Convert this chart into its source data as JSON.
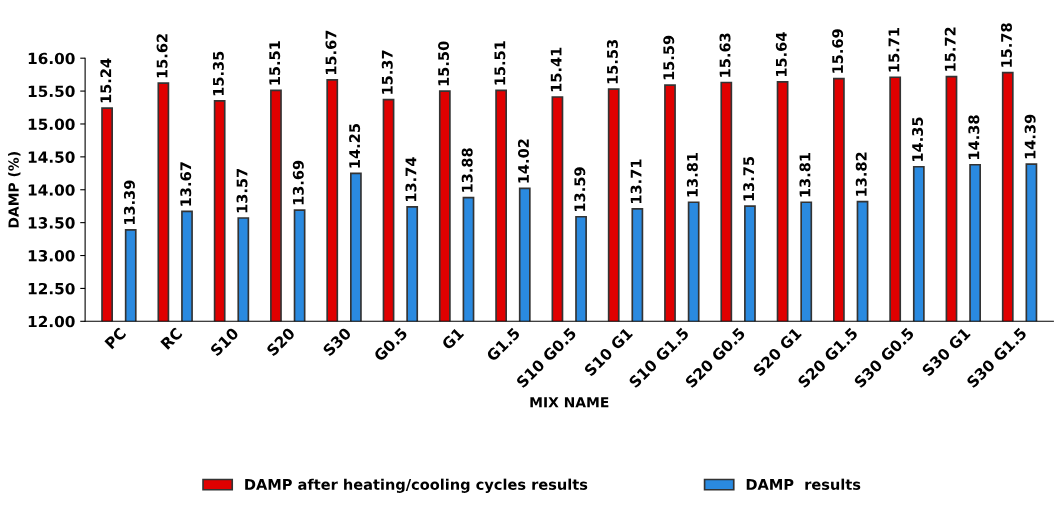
{
  "chart_data": {
    "type": "bar",
    "xlabel": "MIX NAME",
    "ylabel": "DAMP (%)",
    "categories": [
      "PC",
      "RC",
      "S10",
      "S20",
      "S30",
      "G0.5",
      "G1",
      "G1.5",
      "S10 G0.5",
      "S10 G1",
      "S10 G1.5",
      "S20 G0.5",
      "S20 G1",
      "S20 G1.5",
      "S30 G0.5",
      "S30 G1",
      "S30 G1.5"
    ],
    "series": [
      {
        "name": "DAMP after heating/cooling cycles results",
        "color": "#e00000",
        "values": [
          15.24,
          15.62,
          15.35,
          15.51,
          15.67,
          15.37,
          15.5,
          15.51,
          15.41,
          15.53,
          15.59,
          15.63,
          15.64,
          15.69,
          15.71,
          15.72,
          15.78
        ],
        "value_labels": [
          "15.24",
          "15.62",
          "15.35",
          "15.51",
          "15.67",
          "15.37",
          "15.50",
          "15.51",
          "15.41",
          "15.53",
          "15.59",
          "15.63",
          "15.64",
          "15.69",
          "15.71",
          "15.72",
          "15.78"
        ]
      },
      {
        "name": "DAMP  results",
        "color": "#2a8ae0",
        "values": [
          13.39,
          13.67,
          13.57,
          13.69,
          14.25,
          13.74,
          13.88,
          14.02,
          13.59,
          13.71,
          13.81,
          13.75,
          13.81,
          13.82,
          14.35,
          14.38,
          14.39
        ],
        "value_labels": [
          "13.39",
          "13.67",
          "13.57",
          "13.69",
          "14.25",
          "13.74",
          "13.88",
          "14.02",
          "13.59",
          "13.71",
          "13.81",
          "13.75",
          "13.81",
          "13.82",
          "14.35",
          "14.38",
          "14.39"
        ]
      }
    ],
    "ylim": [
      12,
      16
    ],
    "yticks": [
      {
        "value": 12,
        "label": "12.00"
      },
      {
        "value": 12.5,
        "label": "12.50"
      },
      {
        "value": 13,
        "label": "13.00"
      },
      {
        "value": 13.5,
        "label": "13.50"
      },
      {
        "value": 14,
        "label": "14.00"
      },
      {
        "value": 14.5,
        "label": "14.50"
      },
      {
        "value": 15,
        "label": "15.00"
      },
      {
        "value": 15.5,
        "label": "15.50"
      },
      {
        "value": 16,
        "label": "16.00"
      }
    ],
    "legend": "bottom",
    "grid": false
  }
}
